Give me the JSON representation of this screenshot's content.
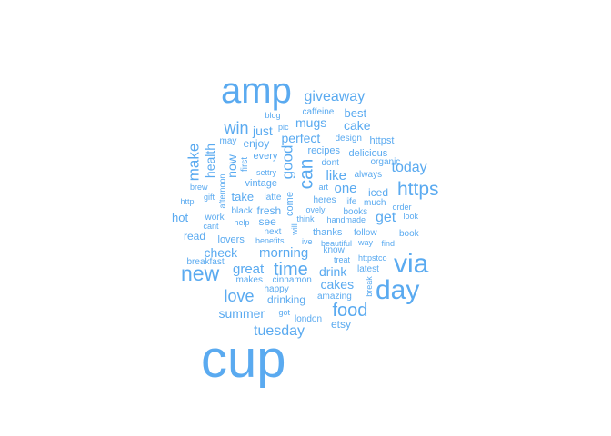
{
  "colors": {
    "word": "#5aaaf0",
    "background": "#ffffff"
  },
  "words": [
    {
      "text": "cup",
      "weight": 100
    },
    {
      "text": "amp",
      "weight": 62
    },
    {
      "text": "via",
      "weight": 40
    },
    {
      "text": "day",
      "weight": 40
    },
    {
      "text": "new",
      "weight": 30
    },
    {
      "text": "https",
      "weight": 28
    },
    {
      "text": "can",
      "weight": 26
    },
    {
      "text": "food",
      "weight": 25
    },
    {
      "text": "time",
      "weight": 25
    },
    {
      "text": "love",
      "weight": 23
    },
    {
      "text": "win",
      "weight": 22
    },
    {
      "text": "good",
      "weight": 22
    },
    {
      "text": "make",
      "weight": 21
    },
    {
      "text": "giveaway",
      "weight": 20
    },
    {
      "text": "today",
      "weight": 20
    },
    {
      "text": "get",
      "weight": 20
    },
    {
      "text": "tuesday",
      "weight": 20
    },
    {
      "text": "great",
      "weight": 19
    },
    {
      "text": "morning",
      "weight": 19
    },
    {
      "text": "like",
      "weight": 19
    },
    {
      "text": "one",
      "weight": 19
    },
    {
      "text": "mugs",
      "weight": 18
    },
    {
      "text": "perfect",
      "weight": 18
    },
    {
      "text": "cake",
      "weight": 17
    },
    {
      "text": "just",
      "weight": 17
    },
    {
      "text": "cakes",
      "weight": 17
    },
    {
      "text": "summer",
      "weight": 17
    },
    {
      "text": "drink",
      "weight": 16
    },
    {
      "text": "check",
      "weight": 16
    },
    {
      "text": "health",
      "weight": 16
    },
    {
      "text": "now",
      "weight": 16
    },
    {
      "text": "best",
      "weight": 15
    },
    {
      "text": "hot",
      "weight": 15
    },
    {
      "text": "take",
      "weight": 15
    },
    {
      "text": "read",
      "weight": 14
    },
    {
      "text": "enjoy",
      "weight": 14
    },
    {
      "text": "drinking",
      "weight": 14
    },
    {
      "text": "fresh",
      "weight": 14
    },
    {
      "text": "see",
      "weight": 14
    },
    {
      "text": "iced",
      "weight": 13
    },
    {
      "text": "etsy",
      "weight": 13
    },
    {
      "text": "delicious",
      "weight": 13
    },
    {
      "text": "thanks",
      "weight": 13
    },
    {
      "text": "lovers",
      "weight": 13
    },
    {
      "text": "vintage",
      "weight": 13
    },
    {
      "text": "httpst",
      "weight": 12
    },
    {
      "text": "recipes",
      "weight": 12
    },
    {
      "text": "every",
      "weight": 12
    },
    {
      "text": "come",
      "weight": 12
    },
    {
      "text": "amazing",
      "weight": 11
    },
    {
      "text": "know",
      "weight": 11
    },
    {
      "text": "book",
      "weight": 11
    },
    {
      "text": "books",
      "weight": 11
    },
    {
      "text": "caffeine",
      "weight": 11
    },
    {
      "text": "heres",
      "weight": 11
    },
    {
      "text": "dont",
      "weight": 11
    },
    {
      "text": "always",
      "weight": 11
    },
    {
      "text": "much",
      "weight": 11
    },
    {
      "text": "life",
      "weight": 11
    },
    {
      "text": "first",
      "weight": 11
    },
    {
      "text": "may",
      "weight": 10
    },
    {
      "text": "design",
      "weight": 10
    },
    {
      "text": "organic",
      "weight": 10
    },
    {
      "text": "follow",
      "weight": 10
    },
    {
      "text": "london",
      "weight": 10
    },
    {
      "text": "latest",
      "weight": 10
    },
    {
      "text": "happy",
      "weight": 10
    },
    {
      "text": "work",
      "weight": 10
    },
    {
      "text": "latte",
      "weight": 10
    },
    {
      "text": "next",
      "weight": 10
    },
    {
      "text": "black",
      "weight": 10
    },
    {
      "text": "breakfast",
      "weight": 10
    },
    {
      "text": "makes",
      "weight": 10
    },
    {
      "text": "cinnamon",
      "weight": 10
    },
    {
      "text": "got",
      "weight": 9
    },
    {
      "text": "look",
      "weight": 9
    },
    {
      "text": "order",
      "weight": 9
    },
    {
      "text": "gift",
      "weight": 9
    },
    {
      "text": "handmade",
      "weight": 9
    },
    {
      "text": "beautiful",
      "weight": 9
    },
    {
      "text": "benefits",
      "weight": 9
    },
    {
      "text": "think",
      "weight": 9
    },
    {
      "text": "lovely",
      "weight": 9
    },
    {
      "text": "way",
      "weight": 9
    },
    {
      "text": "find",
      "weight": 9
    },
    {
      "text": "treat",
      "weight": 9
    },
    {
      "text": "httpstco",
      "weight": 9
    },
    {
      "text": "will",
      "weight": 9
    },
    {
      "text": "ive",
      "weight": 9
    },
    {
      "text": "art",
      "weight": 9
    },
    {
      "text": "blog",
      "weight": 9
    },
    {
      "text": "pic",
      "weight": 9
    },
    {
      "text": "settry",
      "weight": 9
    },
    {
      "text": "brew",
      "weight": 9
    },
    {
      "text": "http",
      "weight": 9
    },
    {
      "text": "cant",
      "weight": 9
    },
    {
      "text": "help",
      "weight": 9
    },
    {
      "text": "afternoon",
      "weight": 9
    },
    {
      "text": "break",
      "weight": 9
    }
  ]
}
